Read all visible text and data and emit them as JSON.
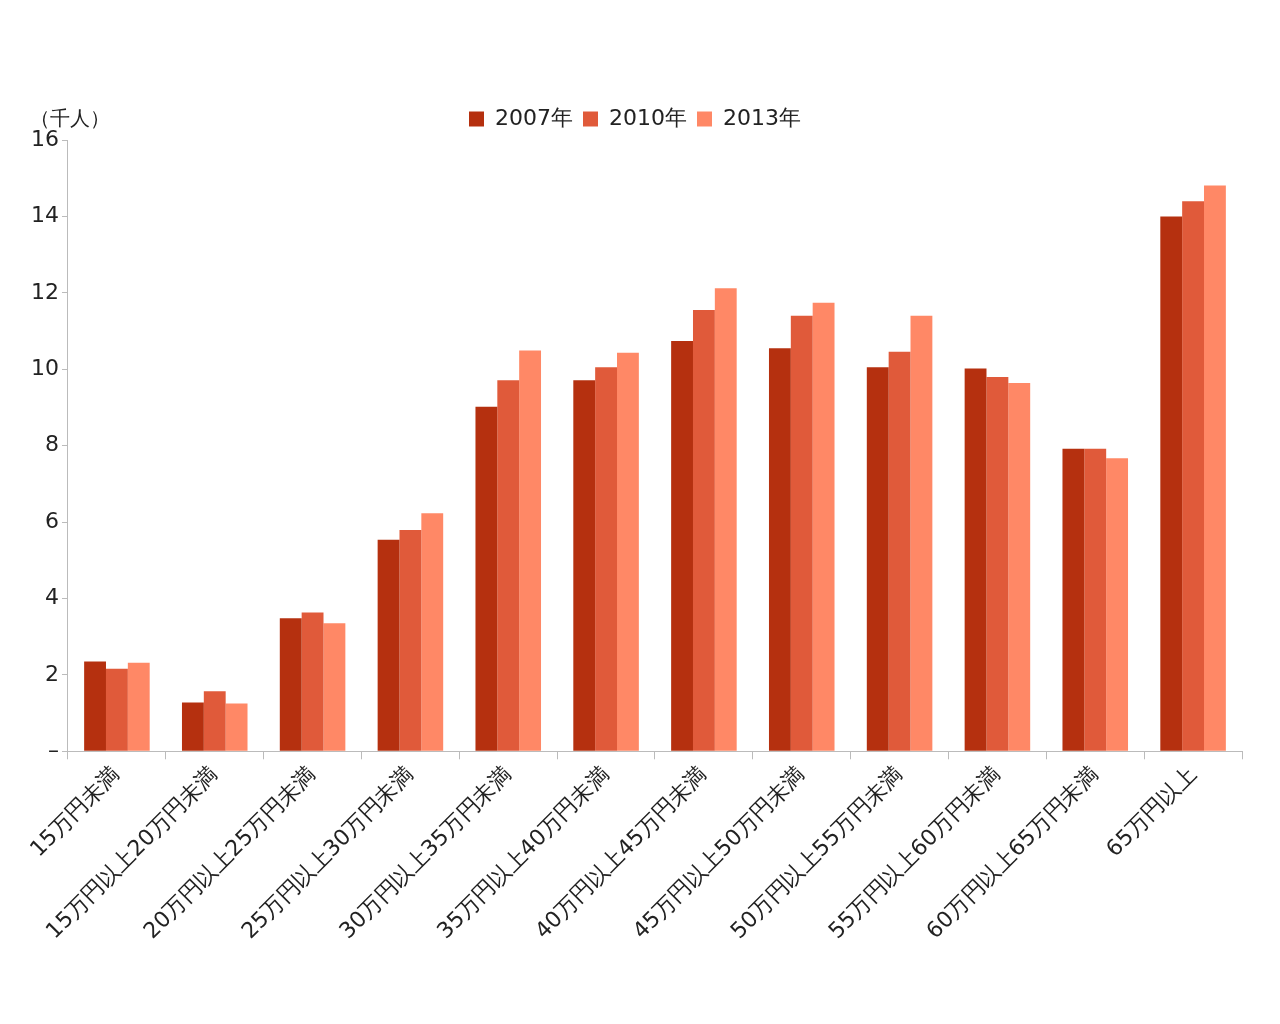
{
  "chart_data": {
    "type": "bar",
    "ylabel": "（千人）",
    "categories": [
      "15万円未満",
      "15万円以上20万円未満",
      "20万円以上25万円未満",
      "25万円以上30万円未満",
      "30万円以上35万円未満",
      "35万円以上40万円未満",
      "40万円以上45万円未満",
      "45万円以上50万円未満",
      "50万円以上55万円未満",
      "55万円以上60万円未満",
      "60万円以上65万円未満",
      "65万円以上"
    ],
    "series": [
      {
        "name": "2007年",
        "color": "#b5300f",
        "values": [
          2.35,
          1.28,
          3.48,
          5.54,
          9.02,
          9.71,
          10.74,
          10.55,
          10.05,
          10.02,
          7.92,
          14.0
        ]
      },
      {
        "name": "2010年",
        "color": "#e05a3a",
        "values": [
          2.16,
          1.57,
          3.63,
          5.79,
          9.71,
          10.05,
          11.55,
          11.4,
          10.46,
          9.8,
          7.92,
          14.4
        ]
      },
      {
        "name": "2013年",
        "color": "#ff8866",
        "values": [
          2.32,
          1.25,
          3.35,
          6.23,
          10.49,
          10.43,
          12.12,
          11.74,
          11.4,
          9.64,
          7.67,
          14.81
        ]
      }
    ],
    "ylim": [
      0,
      16
    ],
    "yticks": [
      {
        "value": 0,
        "label": "–"
      },
      2,
      4,
      6,
      8,
      10,
      12,
      14,
      16
    ],
    "grid": false,
    "legend": "top"
  }
}
